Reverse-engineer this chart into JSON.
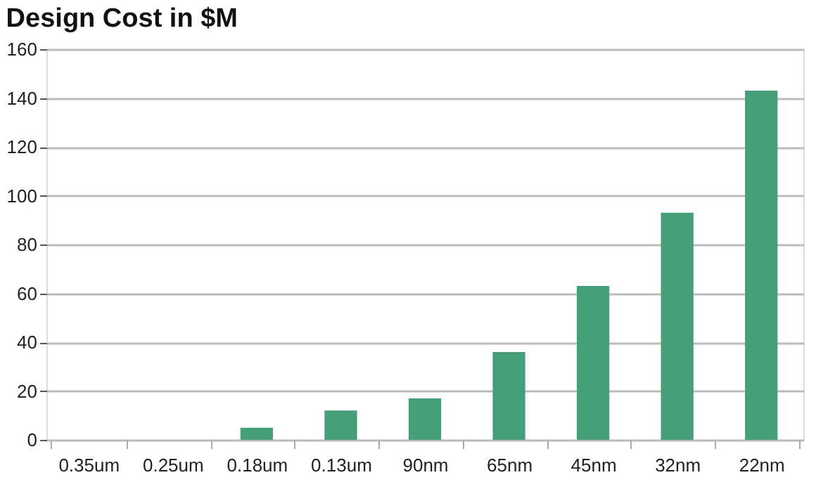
{
  "chart_data": {
    "type": "bar",
    "title": "Design Cost in $M",
    "categories": [
      "0.35um",
      "0.25um",
      "0.18um",
      "0.13um",
      "90nm",
      "65nm",
      "45nm",
      "32nm",
      "22nm"
    ],
    "values": [
      0,
      0,
      5,
      12,
      17,
      36,
      63,
      93,
      143
    ],
    "color": "#45a07a",
    "ylim": [
      0,
      160
    ],
    "yticks": [
      0,
      20,
      40,
      60,
      80,
      100,
      120,
      140,
      160
    ],
    "grid": "y"
  }
}
